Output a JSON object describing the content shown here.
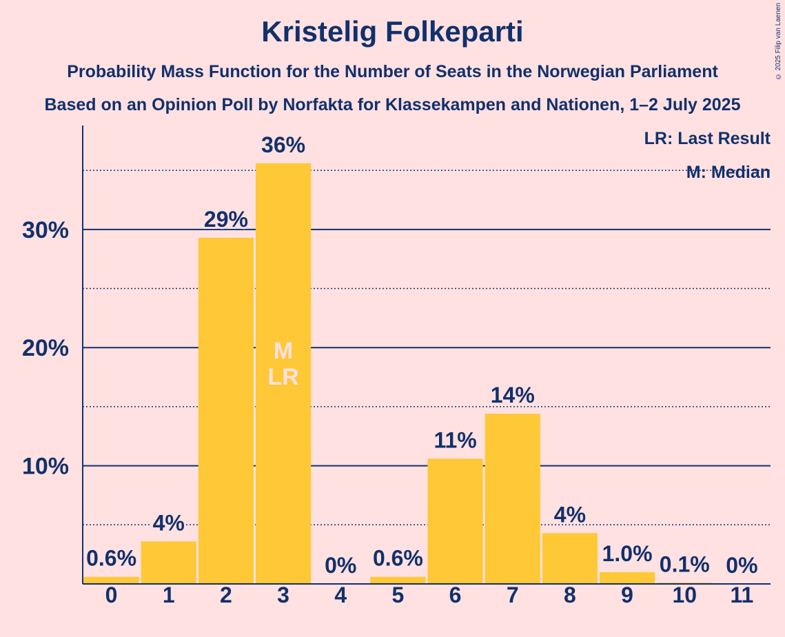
{
  "title": "Kristelig Folkeparti",
  "subtitle1": "Probability Mass Function for the Number of Seats in the Norwegian Parliament",
  "subtitle2": "Based on an Opinion Poll by Norfakta for Klassekampen and Nationen, 1–2 July 2025",
  "copyright": "© 2025 Filip van Laenen",
  "legend": {
    "lr": "LR: Last Result",
    "median": "M: Median"
  },
  "colors": {
    "background": "#FFE1E2",
    "bar": "#FFC836",
    "text": "#12306B",
    "inner_label": "#FFE1E2"
  },
  "chart_data": {
    "type": "bar",
    "categories": [
      "0",
      "1",
      "2",
      "3",
      "4",
      "5",
      "6",
      "7",
      "8",
      "9",
      "10",
      "11"
    ],
    "values": [
      0.6,
      3.6,
      29.3,
      35.6,
      0,
      0.6,
      10.6,
      14.4,
      4.3,
      1.0,
      0.1,
      0
    ],
    "data_labels": [
      "0.6%",
      "4%",
      "29%",
      "36%",
      "0%",
      "0.6%",
      "11%",
      "14%",
      "4%",
      "1.0%",
      "0.1%",
      "0%"
    ],
    "ylim": [
      0,
      38.8
    ],
    "y_ticks": [
      {
        "value": 10,
        "label": "10%"
      },
      {
        "value": 20,
        "label": "20%"
      },
      {
        "value": 30,
        "label": "30%"
      }
    ],
    "minor_gridlines": [
      5,
      15,
      25,
      35
    ],
    "markers": [
      {
        "category": "3",
        "lines": [
          "M",
          "LR"
        ]
      }
    ],
    "legend_position": "top-right"
  }
}
